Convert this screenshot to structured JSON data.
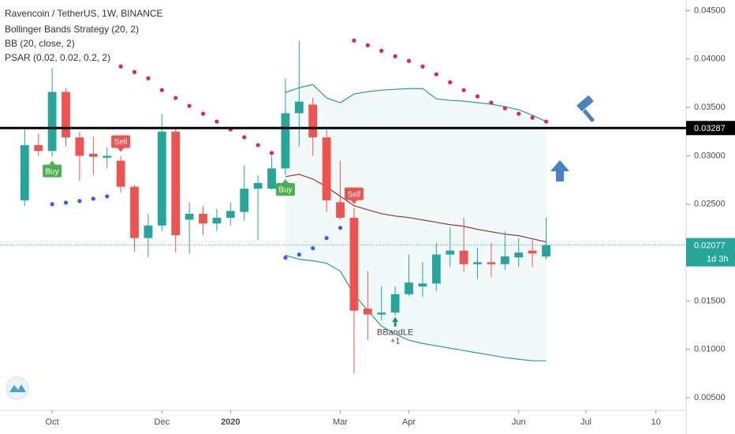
{
  "chart_data": {
    "type": "candlestick",
    "title": "Ravencoin / TetherUS, 1W, BINANCE",
    "indicators": [
      "Bollinger Bands Strategy (20, 2)",
      "BB (20, close, 2)",
      "PSAR (0.02, 0.02, 0.2, 2)"
    ],
    "x": [
      0,
      1,
      2,
      3,
      4,
      5,
      6,
      7,
      8,
      9,
      10,
      11,
      12,
      13,
      14,
      15,
      16,
      17,
      18,
      19,
      20,
      21,
      22,
      23,
      24,
      25,
      26,
      27,
      28,
      29,
      30,
      31,
      32,
      33,
      34,
      35,
      36,
      37,
      38
    ],
    "open": [
      0.0254,
      0.0311,
      0.0305,
      0.0366,
      0.0319,
      0.0302,
      0.0298,
      0.0295,
      0.0268,
      0.0215,
      0.0228,
      0.0325,
      0.0234,
      0.024,
      0.023,
      0.0236,
      0.0242,
      0.0266,
      0.0266,
      0.0287,
      0.0344,
      0.0353,
      0.0319,
      0.0252,
      0.0236,
      0.0142,
      0.0136,
      0.0138,
      0.0157,
      0.0165,
      0.0168,
      0.0198,
      0.0202,
      0.0188,
      0.019,
      0.0188,
      0.0195,
      0.0202,
      0.0196
    ],
    "high": [
      0.0327,
      0.0323,
      0.0391,
      0.037,
      0.0325,
      0.032,
      0.0309,
      0.03,
      0.027,
      0.024,
      0.0343,
      0.033,
      0.0252,
      0.0248,
      0.0245,
      0.0252,
      0.029,
      0.028,
      0.03,
      0.038,
      0.0419,
      0.036,
      0.033,
      0.0295,
      0.0246,
      0.0181,
      0.0165,
      0.0165,
      0.0198,
      0.019,
      0.021,
      0.0226,
      0.0236,
      0.0205,
      0.021,
      0.0222,
      0.0215,
      0.0213,
      0.0236
    ],
    "low": [
      0.0248,
      0.03,
      0.0299,
      0.031,
      0.0274,
      0.028,
      0.0287,
      0.0262,
      0.0201,
      0.0195,
      0.0222,
      0.02,
      0.0199,
      0.0218,
      0.0222,
      0.0228,
      0.0233,
      0.0213,
      0.0265,
      0.028,
      0.031,
      0.03,
      0.0242,
      0.0234,
      0.0075,
      0.011,
      0.013,
      0.0135,
      0.0155,
      0.0154,
      0.016,
      0.0185,
      0.018,
      0.0173,
      0.0175,
      0.0182,
      0.0185,
      0.0185,
      0.0193
    ],
    "close": [
      0.0311,
      0.0305,
      0.0366,
      0.0319,
      0.03,
      0.0299,
      0.03,
      0.0268,
      0.0215,
      0.0228,
      0.0325,
      0.0218,
      0.024,
      0.023,
      0.0236,
      0.0243,
      0.0266,
      0.0272,
      0.0287,
      0.0344,
      0.0356,
      0.0319,
      0.0254,
      0.0236,
      0.014,
      0.0136,
      0.0138,
      0.0157,
      0.0169,
      0.0168,
      0.0198,
      0.0202,
      0.0188,
      0.019,
      0.0188,
      0.0196,
      0.02,
      0.0199,
      0.02077
    ],
    "up_color": "#26a69a",
    "down_color": "#ef5350",
    "bb_upper": [
      null,
      null,
      null,
      null,
      null,
      null,
      null,
      null,
      null,
      null,
      null,
      null,
      null,
      null,
      null,
      null,
      null,
      null,
      null,
      0.03655,
      0.03703,
      0.03736,
      0.03598,
      0.03549,
      0.03638,
      0.03663,
      0.03679,
      0.03687,
      0.03695,
      0.03695,
      0.03589,
      0.03573,
      0.03565,
      0.03549,
      0.03533,
      0.03508,
      0.03476,
      0.03419,
      0.03354
    ],
    "bb_middle": [
      null,
      null,
      null,
      null,
      null,
      null,
      null,
      null,
      null,
      null,
      null,
      null,
      null,
      null,
      null,
      null,
      null,
      null,
      null,
      0.02785,
      0.02809,
      0.0276,
      0.02679,
      0.02581,
      0.02484,
      0.02443,
      0.02402,
      0.02378,
      0.02362,
      0.02337,
      0.02313,
      0.02288,
      0.02272,
      0.0224,
      0.02215,
      0.02191,
      0.02175,
      0.02142,
      0.0211
    ],
    "bb_lower": [
      null,
      null,
      null,
      null,
      null,
      null,
      null,
      null,
      null,
      null,
      null,
      null,
      null,
      null,
      null,
      null,
      null,
      null,
      null,
      0.01972,
      0.01931,
      0.01915,
      0.0189,
      0.01809,
      0.01565,
      0.01402,
      0.0124,
      0.01159,
      0.01094,
      0.01061,
      0.01037,
      0.01012,
      0.00988,
      0.00963,
      0.00939,
      0.00915,
      0.00898,
      0.00882,
      0.00882
    ],
    "psar": [
      null,
      null,
      0.025,
      0.02516,
      0.02533,
      0.02557,
      0.02581,
      0.03923,
      0.03866,
      0.03801,
      0.03679,
      0.03598,
      0.03516,
      0.03435,
      0.03354,
      0.03272,
      0.03191,
      0.0311,
      0.03029,
      0.01947,
      0.0198,
      0.02045,
      0.0215,
      0.02256,
      0.04191,
      0.04142,
      0.04085,
      0.04028,
      0.0398,
      0.03923,
      0.03842,
      0.0376,
      0.03679,
      0.03614,
      0.03549,
      0.03492,
      0.03435,
      0.03394,
      0.03354
    ],
    "signals": [
      {
        "index": 2,
        "text": "Buy"
      },
      {
        "index": 7,
        "text": "Sell"
      },
      {
        "index": 19,
        "text": "Buy"
      },
      {
        "index": 24,
        "text": "Sell"
      }
    ],
    "bband_entry": {
      "index": 27,
      "text": "BBandLE",
      "qty": "+1"
    },
    "hline": {
      "value": 0.03287,
      "label": "0.03287"
    },
    "last_price_label": "0.02077",
    "countdown": "1d 3h",
    "xlim": [
      -1.8,
      48.2
    ],
    "ylim": [
      0.0037,
      0.0461
    ],
    "yticks": [
      {
        "value": 0.045,
        "label": "0.04500"
      },
      {
        "value": 0.04,
        "label": "0.04000"
      },
      {
        "value": 0.035,
        "label": "0.03500"
      },
      {
        "value": 0.03,
        "label": "0.03000"
      },
      {
        "value": 0.025,
        "label": "0.02500"
      },
      {
        "value": 0.015,
        "label": "0.01500"
      },
      {
        "value": 0.01,
        "label": "0.01000"
      },
      {
        "value": 0.005,
        "label": "0.00500"
      }
    ],
    "xticks": [
      {
        "value": 2,
        "label": "Oct"
      },
      {
        "value": 10,
        "label": "Dec"
      },
      {
        "value": 15,
        "label": "2020"
      },
      {
        "value": 23,
        "label": "Mar"
      },
      {
        "value": 28,
        "label": "Apr"
      },
      {
        "value": 36,
        "label": "Jun"
      },
      {
        "value": 40.9,
        "label": "Jul"
      },
      {
        "value": 46,
        "label": "10"
      }
    ]
  }
}
